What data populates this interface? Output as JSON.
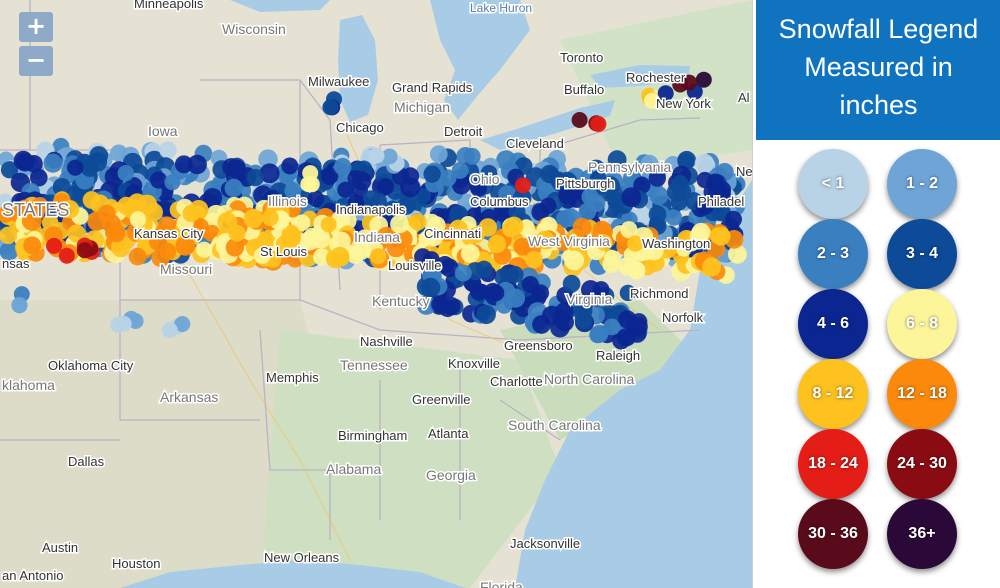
{
  "map": {
    "zoom_in_label": "+",
    "zoom_out_label": "−",
    "place_labels": [
      "Minneapolis",
      "Wisconsin",
      "Lake Huron",
      "Toronto",
      "Rochester",
      "New York",
      "Al",
      "Milwaukee",
      "Grand Rapids",
      "Michigan",
      "Buffalo",
      "Iowa",
      "Chicago",
      "Detroit",
      "Cleveland",
      "Pennsylvania",
      "Ohio",
      "Pittsburgh",
      "Ne",
      "Philadel",
      "STATES",
      "Illinois",
      "Indianapolis",
      "Columbus",
      "Kansas City",
      "Indiana",
      "Cincinnati",
      "West Virginia",
      "Washington",
      "nsas",
      "St Louis",
      "Missouri",
      "Louisville",
      "Kentucky",
      "Virginia",
      "Richmond",
      "Norfolk",
      "Nashville",
      "Greensboro",
      "Raleigh",
      "Oklahoma City",
      "klahoma",
      "Tennessee",
      "Knoxville",
      "Memphis",
      "Charlotte",
      "North Carolina",
      "Arkansas",
      "Greenville",
      "South Carolina",
      "Birmingham",
      "Atlanta",
      "Dallas",
      "Alabama",
      "Georgia",
      "Austin",
      "New Orleans",
      "Jacksonville",
      "Houston",
      "an Antonio",
      "Florida"
    ]
  },
  "legend": {
    "title_line1": "Snowfall Legend",
    "title_line2": "Measured in",
    "title_line3": "inches",
    "items": [
      {
        "label": "< 1",
        "color": "#b8d3e6"
      },
      {
        "label": "1 - 2",
        "color": "#6ea5d6"
      },
      {
        "label": "2 - 3",
        "color": "#3a7fc0"
      },
      {
        "label": "3 - 4",
        "color": "#0d4a98"
      },
      {
        "label": "4 - 6",
        "color": "#0b2690"
      },
      {
        "label": "6 - 8",
        "color": "#fdf59a"
      },
      {
        "label": "8 - 12",
        "color": "#fec21e"
      },
      {
        "label": "12 - 18",
        "color": "#fb8a0c"
      },
      {
        "label": "18 - 24",
        "color": "#e41e17"
      },
      {
        "label": "24 - 30",
        "color": "#8a0c12"
      },
      {
        "label": "30 - 36",
        "color": "#5a0b1b"
      },
      {
        "label": "36+",
        "color": "#2a0838"
      }
    ]
  }
}
